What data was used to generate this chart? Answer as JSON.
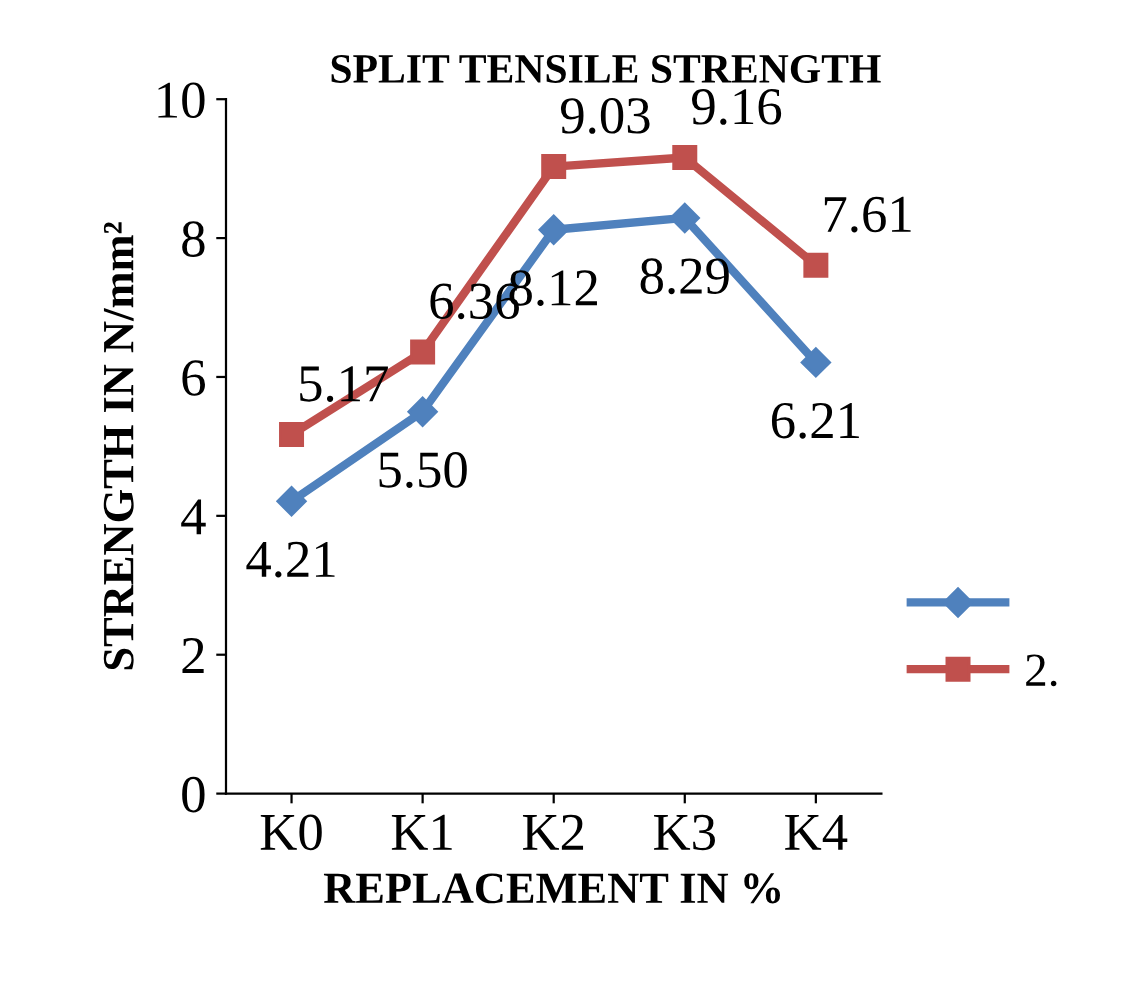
{
  "chart_data": {
    "type": "line",
    "title": "SPLIT TENSILE STRENGTH",
    "xlabel": "REPLACEMENT IN %",
    "ylabel": "STRENGTH IN N/mm²",
    "categories": [
      "K0",
      "K1",
      "K2",
      "K3",
      "K4"
    ],
    "series": [
      {
        "color": "#4f81bd",
        "marker": "diamond",
        "values": [
          4.21,
          5.5,
          8.12,
          8.29,
          6.21
        ],
        "value_labels": [
          "4.21",
          "5.50",
          "8.12",
          "8.29",
          "6.21"
        ]
      },
      {
        "name": "2.",
        "color": "#c0504d",
        "marker": "square",
        "values": [
          5.17,
          6.36,
          9.03,
          9.16,
          7.61
        ],
        "value_labels": [
          "5.17",
          "6.36",
          "9.03",
          "9.16",
          "7.61"
        ]
      }
    ],
    "ylim": [
      0,
      10
    ],
    "yticks": [
      0,
      2,
      4,
      6,
      8,
      10
    ],
    "grid": false,
    "legend": "right",
    "line_style": "solid"
  }
}
